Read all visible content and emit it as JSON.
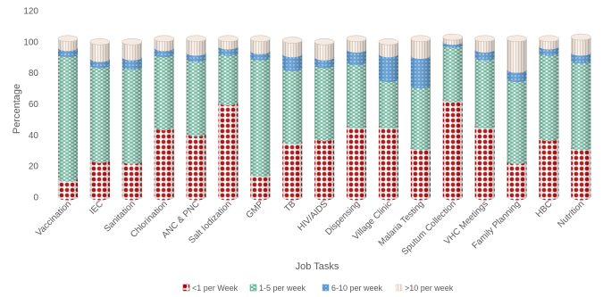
{
  "chart_data": {
    "type": "bar",
    "stacked": true,
    "style": "3d-cylinder",
    "title": "",
    "xlabel": "Job Tasks",
    "ylabel": "Percentage",
    "ylim": [
      0,
      120
    ],
    "yticks": [
      0,
      20,
      40,
      60,
      80,
      100,
      120
    ],
    "grid": false,
    "legend_position": "bottom",
    "categories": [
      "Vaccination",
      "IEC",
      "Sanitation",
      "Chlorination",
      "ANC & PNC",
      "Salt Iodization",
      "GMP",
      "TB",
      "HIV/AIDS",
      "Dispensing",
      "Village Clinic",
      "Malaria Testing",
      "Sputum Collection",
      "VHC Meetings",
      "Family Planning",
      "HBC",
      "Nutrition"
    ],
    "series": [
      {
        "name": "<1 per Week",
        "color": "#c00000",
        "values": [
          12,
          24,
          23,
          45,
          41,
          61,
          15,
          36,
          38,
          46,
          46,
          32,
          63,
          46,
          23,
          38,
          32
        ]
      },
      {
        "name": "1-5 per week",
        "color": "#2e9e7a",
        "values": [
          80,
          61,
          61,
          47,
          48,
          32,
          75,
          47,
          47,
          41,
          30,
          40,
          35,
          44,
          53,
          55,
          56
        ]
      },
      {
        "name": "6-10 per week",
        "color": "#5b9bd5",
        "values": [
          4,
          4,
          6,
          4,
          4,
          4,
          4,
          9,
          5,
          8,
          16,
          19,
          2,
          5,
          6,
          4,
          5
        ]
      },
      {
        "name": ">10 per week",
        "color": "#d9c8b8",
        "values": [
          6,
          11,
          10,
          6,
          9,
          5,
          8,
          9,
          10,
          7,
          8,
          11,
          3,
          7,
          20,
          5,
          10
        ]
      }
    ]
  }
}
